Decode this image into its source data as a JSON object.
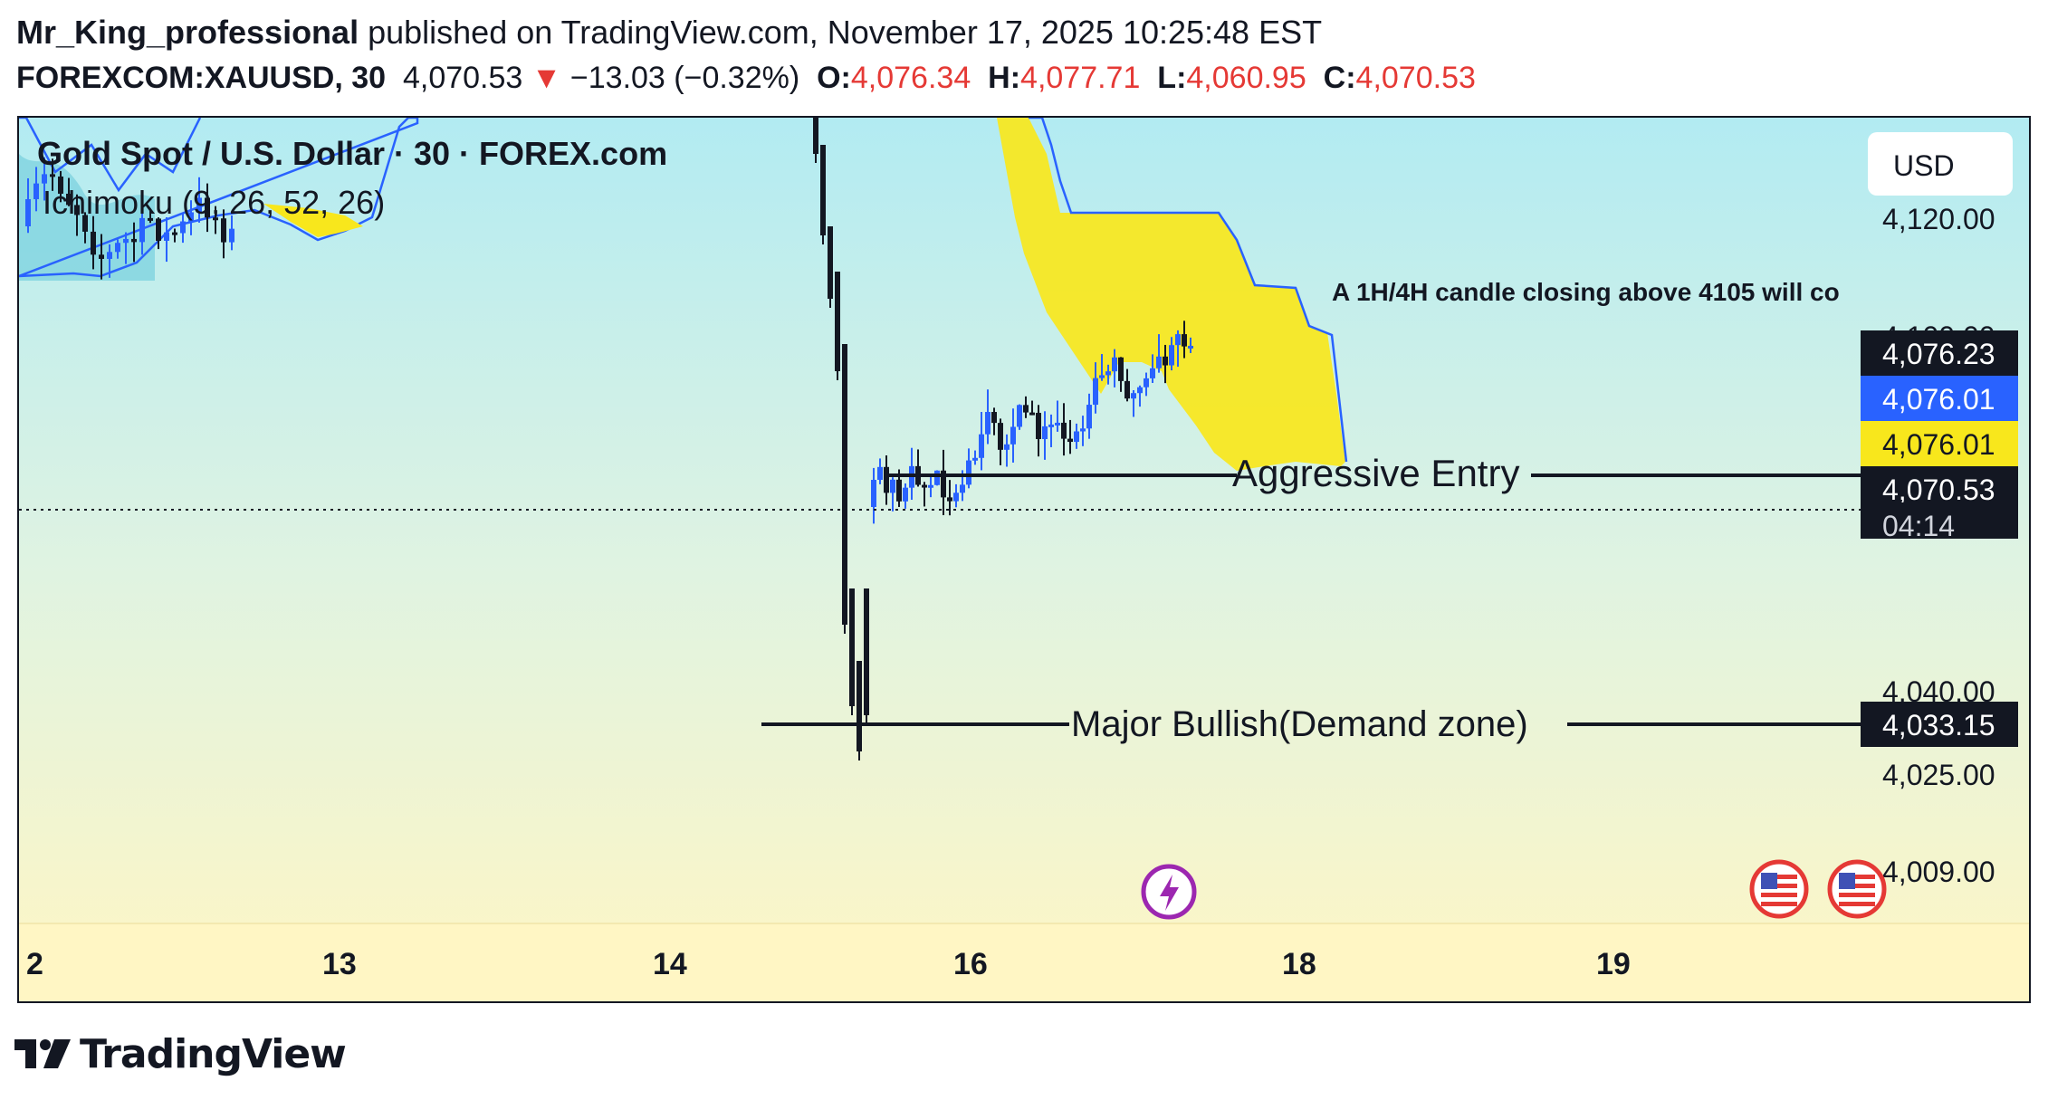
{
  "header": {
    "author": "Mr_King_professional",
    "published_text": "published on TradingView.com, November 17, 2025 10:25:48 EST",
    "symbol": "FOREXCOM:XAUUSD, 30",
    "price": "4,070.53",
    "change": "−13.03 (−0.32%)",
    "o_label": "O:",
    "o_value": "4,076.34",
    "h_label": "H:",
    "h_value": "4,077.71",
    "l_label": "L:",
    "l_value": "4,060.95",
    "c_label": "C:",
    "c_value": "4,070.53"
  },
  "chart_data": {
    "type": "candlestick",
    "title": "Gold Spot / U.S. Dollar · 30 · FOREX.com",
    "indicator": "Ichimoku (9, 26, 52, 26)",
    "currency_button": "USD",
    "y_ticks": [
      "4,120.00",
      "4,100.00",
      "4,040.00",
      "4,025.00",
      "4,009.00"
    ],
    "y_tick_values": [
      4120,
      4100,
      4040,
      4025,
      4009
    ],
    "x_ticks": [
      "2",
      "13",
      "14",
      "16",
      "18",
      "19"
    ],
    "price_tags": [
      {
        "label": "4,076.23",
        "value": 4076.23,
        "bg": "#131722",
        "fg": "#ffffff"
      },
      {
        "label": "4,076.01",
        "value": 4076.01,
        "bg": "#2962ff",
        "fg": "#ffffff"
      },
      {
        "label": "4,076.01",
        "value": 4076.01,
        "bg": "#f8e71c",
        "fg": "#131722"
      },
      {
        "label": "4,070.53",
        "value": 4070.53,
        "bg": "#131722",
        "fg": "#ffffff"
      },
      {
        "label": "04:14",
        "bg": "#131722",
        "fg": "#d1d4dc"
      },
      {
        "label": "4,033.15",
        "value": 4033.15,
        "bg": "#131722",
        "fg": "#ffffff"
      }
    ],
    "annotations": {
      "note": "A 1H/4H candle closing above 4105 will co",
      "entry": "Aggressive Entry",
      "entry_level": 4076.01,
      "demand": "Major Bullish(Demand zone)",
      "demand_level": 4033.15
    },
    "current_price": 4070.53,
    "colors": {
      "up": "#2962ff",
      "down": "#131722",
      "cloud": "#f8e71c",
      "line": "#2962ff"
    }
  },
  "branding": {
    "logo_text": "TradingView"
  }
}
